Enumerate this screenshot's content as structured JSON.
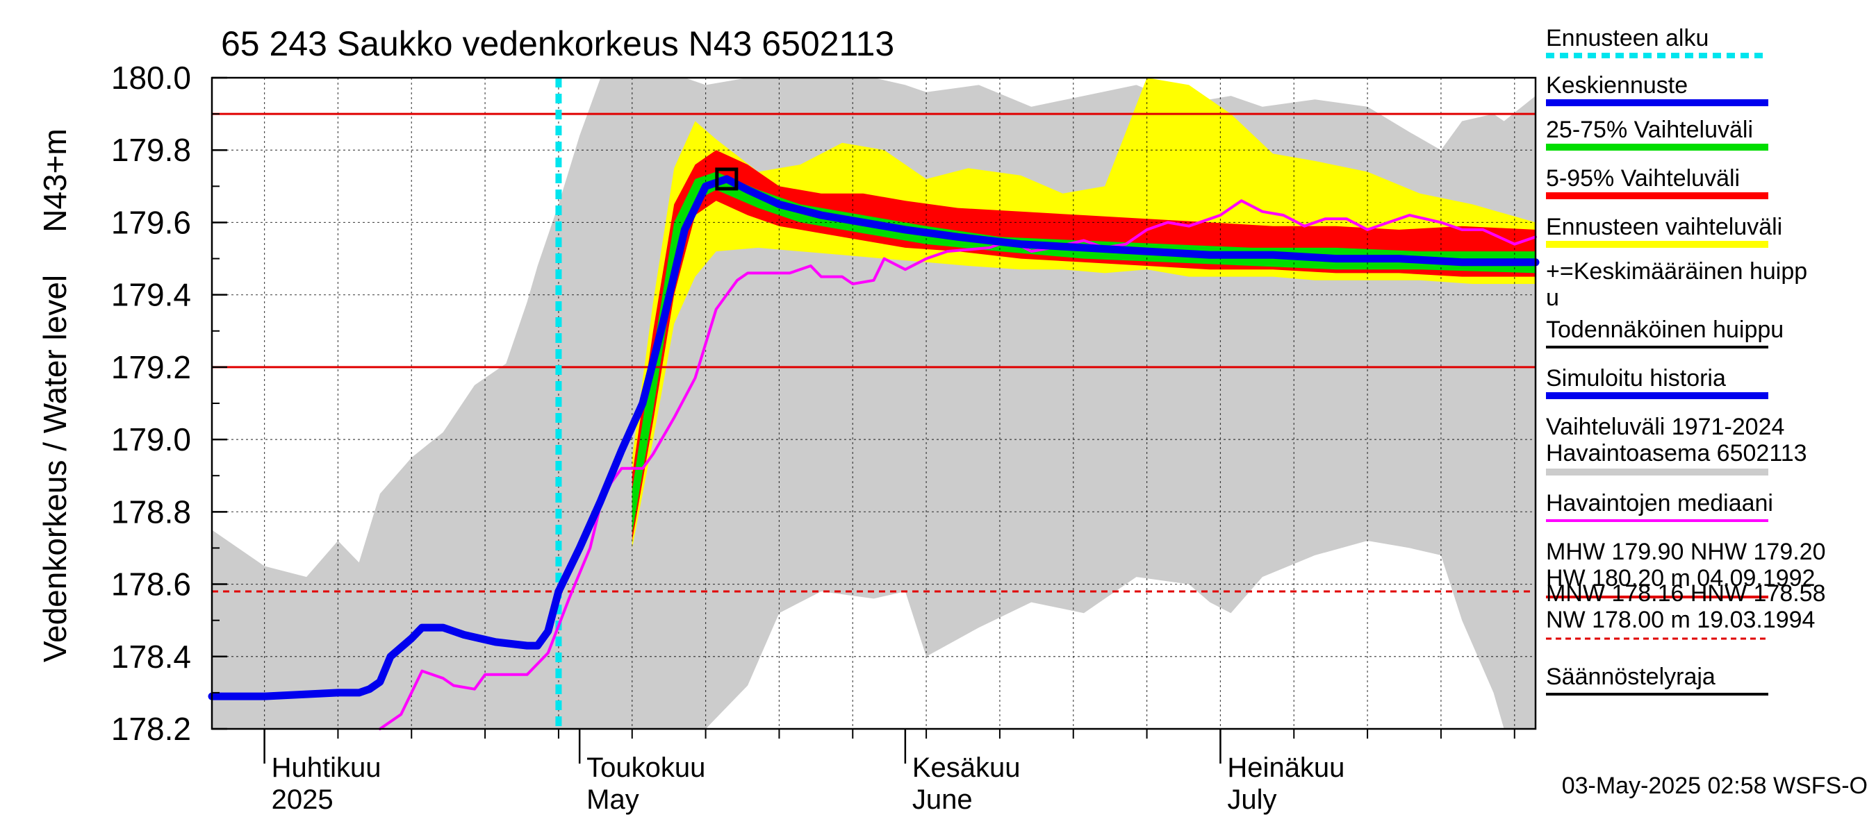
{
  "chart_data": {
    "type": "area",
    "title": "65 243 Saukko vedenkorkeus N43 6502113",
    "ylabel": "Vedenkorkeus / Water level",
    "yunit": "N43+m",
    "ylim": [
      178.2,
      180.0
    ],
    "yticks": [
      "180.0",
      "179.8",
      "179.6",
      "179.4",
      "179.2",
      "179.0",
      "178.8",
      "178.6",
      "178.4",
      "178.2"
    ],
    "xlim": [
      "2025-03-27",
      "2025-07-31"
    ],
    "x_month_labels": [
      {
        "date": "2025-04-01",
        "fi": "Huhtikuu",
        "en": "2025"
      },
      {
        "date": "2025-05-01",
        "fi": "Toukokuu",
        "en": "May"
      },
      {
        "date": "2025-06-01",
        "fi": "Kesäkuu",
        "en": "June"
      },
      {
        "date": "2025-07-01",
        "fi": "Heinäkuu",
        "en": "July"
      }
    ],
    "forecast_start": "2025-04-29",
    "reference_lines": [
      {
        "name": "MHW",
        "y": 179.9,
        "style": "solid",
        "color": "#e00000"
      },
      {
        "name": "NHW",
        "y": 179.2,
        "style": "solid",
        "color": "#e00000"
      },
      {
        "name": "HNW",
        "y": 178.58,
        "style": "dashed",
        "color": "#e00000"
      }
    ],
    "series": [
      {
        "name": "Vaihteluväli 1971-2024 Havaintoasema 6502113",
        "kind": "band",
        "color": "#cccccc",
        "points": [
          [
            "2025-03-27",
            178.2,
            178.75
          ],
          [
            "2025-04-01",
            178.2,
            178.65
          ],
          [
            "2025-04-05",
            178.2,
            178.62
          ],
          [
            "2025-04-08",
            178.2,
            178.72
          ],
          [
            "2025-04-10",
            178.2,
            178.66
          ],
          [
            "2025-04-12",
            178.2,
            178.85
          ],
          [
            "2025-04-15",
            178.2,
            178.95
          ],
          [
            "2025-04-18",
            178.2,
            179.02
          ],
          [
            "2025-04-21",
            178.2,
            179.15
          ],
          [
            "2025-04-24",
            178.2,
            179.21
          ],
          [
            "2025-04-26",
            178.2,
            179.38
          ],
          [
            "2025-04-27",
            178.2,
            179.48
          ],
          [
            "2025-04-29",
            178.2,
            179.65
          ],
          [
            "2025-05-01",
            178.2,
            179.84
          ],
          [
            "2025-05-03",
            178.2,
            180.0
          ],
          [
            "2025-05-11",
            178.2,
            180.0
          ],
          [
            "2025-05-13",
            178.2,
            179.98
          ],
          [
            "2025-05-17",
            178.32,
            180.0
          ],
          [
            "2025-05-20",
            178.52,
            180.0
          ],
          [
            "2025-05-24",
            178.58,
            180.0
          ],
          [
            "2025-05-29",
            178.56,
            180.0
          ],
          [
            "2025-06-01",
            178.58,
            179.98
          ],
          [
            "2025-06-03",
            178.4,
            179.96
          ],
          [
            "2025-06-08",
            178.48,
            179.98
          ],
          [
            "2025-06-13",
            178.55,
            179.92
          ],
          [
            "2025-06-18",
            178.52,
            179.95
          ],
          [
            "2025-06-23",
            178.62,
            179.98
          ],
          [
            "2025-06-28",
            178.6,
            179.92
          ],
          [
            "2025-06-30",
            178.55,
            179.94
          ],
          [
            "2025-07-02",
            178.52,
            179.95
          ],
          [
            "2025-07-05",
            178.62,
            179.92
          ],
          [
            "2025-07-10",
            178.68,
            179.94
          ],
          [
            "2025-07-15",
            178.72,
            179.92
          ],
          [
            "2025-07-19",
            178.7,
            179.85
          ],
          [
            "2025-07-22",
            178.68,
            179.8
          ],
          [
            "2025-07-24",
            178.5,
            179.88
          ],
          [
            "2025-07-27",
            178.3,
            179.9
          ],
          [
            "2025-07-28",
            178.2,
            179.88
          ],
          [
            "2025-07-31",
            178.2,
            179.95
          ]
        ]
      },
      {
        "name": "Ennusteen vaihteluväli",
        "kind": "band",
        "color": "#ffff00",
        "points": [
          [
            "2025-05-06",
            178.7,
            178.95
          ],
          [
            "2025-05-08",
            179.0,
            179.38
          ],
          [
            "2025-05-10",
            179.32,
            179.75
          ],
          [
            "2025-05-12",
            179.45,
            179.88
          ],
          [
            "2025-05-14",
            179.52,
            179.83
          ],
          [
            "2025-05-18",
            179.53,
            179.74
          ],
          [
            "2025-05-22",
            179.52,
            179.76
          ],
          [
            "2025-05-26",
            179.51,
            179.82
          ],
          [
            "2025-05-30",
            179.5,
            179.8
          ],
          [
            "2025-06-03",
            179.49,
            179.72
          ],
          [
            "2025-06-07",
            179.48,
            179.75
          ],
          [
            "2025-06-12",
            179.47,
            179.73
          ],
          [
            "2025-06-16",
            179.47,
            179.68
          ],
          [
            "2025-06-20",
            179.46,
            179.7
          ],
          [
            "2025-06-24",
            179.47,
            180.0
          ],
          [
            "2025-06-28",
            179.45,
            179.98
          ],
          [
            "2025-07-02",
            179.45,
            179.9
          ],
          [
            "2025-07-06",
            179.45,
            179.79
          ],
          [
            "2025-07-10",
            179.44,
            179.77
          ],
          [
            "2025-07-15",
            179.44,
            179.74
          ],
          [
            "2025-07-20",
            179.44,
            179.68
          ],
          [
            "2025-07-25",
            179.43,
            179.65
          ],
          [
            "2025-07-31",
            179.43,
            179.6
          ]
        ]
      },
      {
        "name": "5-95% Vaihteluväli",
        "kind": "band",
        "color": "#ff0000",
        "points": [
          [
            "2025-05-06",
            178.72,
            178.9
          ],
          [
            "2025-05-08",
            179.05,
            179.3
          ],
          [
            "2025-05-10",
            179.4,
            179.65
          ],
          [
            "2025-05-12",
            179.62,
            179.76
          ],
          [
            "2025-05-14",
            179.66,
            179.8
          ],
          [
            "2025-05-17",
            179.62,
            179.76
          ],
          [
            "2025-05-20",
            179.59,
            179.7
          ],
          [
            "2025-05-24",
            179.57,
            179.68
          ],
          [
            "2025-05-28",
            179.55,
            179.68
          ],
          [
            "2025-06-01",
            179.53,
            179.66
          ],
          [
            "2025-06-06",
            179.52,
            179.64
          ],
          [
            "2025-06-12",
            179.5,
            179.63
          ],
          [
            "2025-06-18",
            179.49,
            179.62
          ],
          [
            "2025-06-24",
            179.48,
            179.61
          ],
          [
            "2025-06-30",
            179.47,
            179.6
          ],
          [
            "2025-07-06",
            179.47,
            179.59
          ],
          [
            "2025-07-12",
            179.46,
            179.59
          ],
          [
            "2025-07-18",
            179.46,
            179.58
          ],
          [
            "2025-07-24",
            179.45,
            179.59
          ],
          [
            "2025-07-31",
            179.45,
            179.58
          ]
        ]
      },
      {
        "name": "25-75% Vaihteluväli",
        "kind": "band",
        "color": "#00dd00",
        "points": [
          [
            "2025-05-06",
            178.74,
            178.86
          ],
          [
            "2025-05-08",
            179.08,
            179.24
          ],
          [
            "2025-05-10",
            179.45,
            179.6
          ],
          [
            "2025-05-12",
            179.66,
            179.72
          ],
          [
            "2025-05-14",
            179.69,
            179.74
          ],
          [
            "2025-05-18",
            179.64,
            179.69
          ],
          [
            "2025-05-22",
            179.6,
            179.65
          ],
          [
            "2025-05-28",
            179.57,
            179.62
          ],
          [
            "2025-06-03",
            179.54,
            179.59
          ],
          [
            "2025-06-10",
            179.52,
            179.56
          ],
          [
            "2025-06-18",
            179.5,
            179.55
          ],
          [
            "2025-06-26",
            179.49,
            179.54
          ],
          [
            "2025-07-04",
            179.48,
            179.53
          ],
          [
            "2025-07-12",
            179.47,
            179.53
          ],
          [
            "2025-07-20",
            179.47,
            179.52
          ],
          [
            "2025-07-31",
            179.46,
            179.52
          ]
        ]
      },
      {
        "name": "Havaintojen mediaani",
        "kind": "line",
        "color": "#ff00ff",
        "points": [
          [
            "2025-04-12",
            178.2
          ],
          [
            "2025-04-14",
            178.24
          ],
          [
            "2025-04-16",
            178.36
          ],
          [
            "2025-04-18",
            178.34
          ],
          [
            "2025-04-19",
            178.32
          ],
          [
            "2025-04-21",
            178.31
          ],
          [
            "2025-04-22",
            178.35
          ],
          [
            "2025-04-26",
            178.35
          ],
          [
            "2025-04-28",
            178.41
          ],
          [
            "2025-04-30",
            178.56
          ],
          [
            "2025-05-02",
            178.7
          ],
          [
            "2025-05-03",
            178.82
          ],
          [
            "2025-05-04",
            178.88
          ],
          [
            "2025-05-05",
            178.92
          ],
          [
            "2025-05-07",
            178.92
          ],
          [
            "2025-05-08",
            178.96
          ],
          [
            "2025-05-10",
            179.06
          ],
          [
            "2025-05-12",
            179.17
          ],
          [
            "2025-05-14",
            179.36
          ],
          [
            "2025-05-16",
            179.44
          ],
          [
            "2025-05-17",
            179.46
          ],
          [
            "2025-05-21",
            179.46
          ],
          [
            "2025-05-23",
            179.48
          ],
          [
            "2025-05-24",
            179.45
          ],
          [
            "2025-05-26",
            179.45
          ],
          [
            "2025-05-27",
            179.43
          ],
          [
            "2025-05-29",
            179.44
          ],
          [
            "2025-05-30",
            179.5
          ],
          [
            "2025-06-01",
            179.47
          ],
          [
            "2025-06-03",
            179.5
          ],
          [
            "2025-06-05",
            179.52
          ],
          [
            "2025-06-09",
            179.53
          ],
          [
            "2025-06-11",
            179.55
          ],
          [
            "2025-06-13",
            179.52
          ],
          [
            "2025-06-15",
            179.53
          ],
          [
            "2025-06-18",
            179.55
          ],
          [
            "2025-06-20",
            179.53
          ],
          [
            "2025-06-22",
            179.54
          ],
          [
            "2025-06-24",
            179.58
          ],
          [
            "2025-06-26",
            179.6
          ],
          [
            "2025-06-28",
            179.59
          ],
          [
            "2025-07-01",
            179.62
          ],
          [
            "2025-07-03",
            179.66
          ],
          [
            "2025-07-05",
            179.63
          ],
          [
            "2025-07-07",
            179.62
          ],
          [
            "2025-07-09",
            179.59
          ],
          [
            "2025-07-11",
            179.61
          ],
          [
            "2025-07-13",
            179.61
          ],
          [
            "2025-07-15",
            179.58
          ],
          [
            "2025-07-17",
            179.6
          ],
          [
            "2025-07-19",
            179.62
          ],
          [
            "2025-07-22",
            179.6
          ],
          [
            "2025-07-24",
            179.58
          ],
          [
            "2025-07-26",
            179.58
          ],
          [
            "2025-07-29",
            179.54
          ],
          [
            "2025-07-31",
            179.56
          ]
        ]
      },
      {
        "name": "Simuloitu historia",
        "kind": "line",
        "color": "#0000ee",
        "points": [
          [
            "2025-03-27",
            178.29
          ],
          [
            "2025-04-01",
            178.29
          ],
          [
            "2025-04-08",
            178.3
          ],
          [
            "2025-04-10",
            178.3
          ],
          [
            "2025-04-11",
            178.31
          ],
          [
            "2025-04-12",
            178.33
          ],
          [
            "2025-04-13",
            178.4
          ],
          [
            "2025-04-15",
            178.45
          ],
          [
            "2025-04-16",
            178.48
          ],
          [
            "2025-04-18",
            178.48
          ],
          [
            "2025-04-20",
            178.46
          ],
          [
            "2025-04-23",
            178.44
          ],
          [
            "2025-04-26",
            178.43
          ],
          [
            "2025-04-27",
            178.43
          ],
          [
            "2025-04-28",
            178.47
          ],
          [
            "2025-04-29",
            178.58
          ]
        ]
      },
      {
        "name": "Keskiennuste",
        "kind": "line",
        "color": "#0000ee",
        "points": [
          [
            "2025-04-29",
            178.58
          ],
          [
            "2025-05-01",
            178.7
          ],
          [
            "2025-05-03",
            178.83
          ],
          [
            "2025-05-05",
            178.97
          ],
          [
            "2025-05-07",
            179.1
          ],
          [
            "2025-05-09",
            179.33
          ],
          [
            "2025-05-11",
            179.58
          ],
          [
            "2025-05-13",
            179.7
          ],
          [
            "2025-05-15",
            179.72
          ],
          [
            "2025-05-17",
            179.69
          ],
          [
            "2025-05-20",
            179.65
          ],
          [
            "2025-05-24",
            179.62
          ],
          [
            "2025-05-28",
            179.6
          ],
          [
            "2025-06-01",
            179.58
          ],
          [
            "2025-06-06",
            179.56
          ],
          [
            "2025-06-12",
            179.54
          ],
          [
            "2025-06-18",
            179.53
          ],
          [
            "2025-06-24",
            179.52
          ],
          [
            "2025-06-30",
            179.51
          ],
          [
            "2025-07-06",
            179.51
          ],
          [
            "2025-07-12",
            179.5
          ],
          [
            "2025-07-18",
            179.5
          ],
          [
            "2025-07-24",
            179.49
          ],
          [
            "2025-07-31",
            179.49
          ]
        ]
      }
    ],
    "peak_marker": {
      "name": "Todennäköinen huippu",
      "date": "2025-05-15",
      "y": 179.72
    }
  },
  "legend": {
    "items": [
      {
        "label": "Ennusteen alku",
        "color": "#00e5ee",
        "style": "dotted"
      },
      {
        "label": "Keskiennuste",
        "color": "#0000ee",
        "style": "thick"
      },
      {
        "label": "25-75% Vaihteluväli",
        "color": "#00dd00",
        "style": "thick"
      },
      {
        "label": "5-95% Vaihteluväli",
        "color": "#ff0000",
        "style": "thick"
      },
      {
        "label": "Ennusteen vaihteluväli",
        "color": "#ffff00",
        "style": "thick"
      },
      {
        "label": "+=Keskimääräinen huipp",
        "label2": "u",
        "color": "",
        "style": "none"
      },
      {
        "label": "Todennäköinen huippu",
        "color": "#000000",
        "style": "thin"
      },
      {
        "label": "Simuloitu historia",
        "color": "#0000ee",
        "style": "thick"
      },
      {
        "label": "Vaihteluväli 1971-2024",
        "label2": " Havaintoasema 6502113",
        "color": "#cccccc",
        "style": "thick"
      },
      {
        "label": "Havaintojen mediaani",
        "color": "#ff00ff",
        "style": "thin"
      },
      {
        "label": "MHW 179.90 NHW 179.20",
        "label2": "HW 180.20 m 04.09.1992",
        "color": "#e00000",
        "style": "thin"
      },
      {
        "label": "MNW 178.16 HNW 178.58",
        "label2": "NW 178.00 m 19.03.1994",
        "color": "#e00000",
        "style": "dashed"
      },
      {
        "label": "Säännöstelyraja",
        "color": "#000000",
        "style": "thin"
      }
    ]
  },
  "footer": {
    "timestamp": "03-May-2025 02:58 WSFS-O"
  }
}
